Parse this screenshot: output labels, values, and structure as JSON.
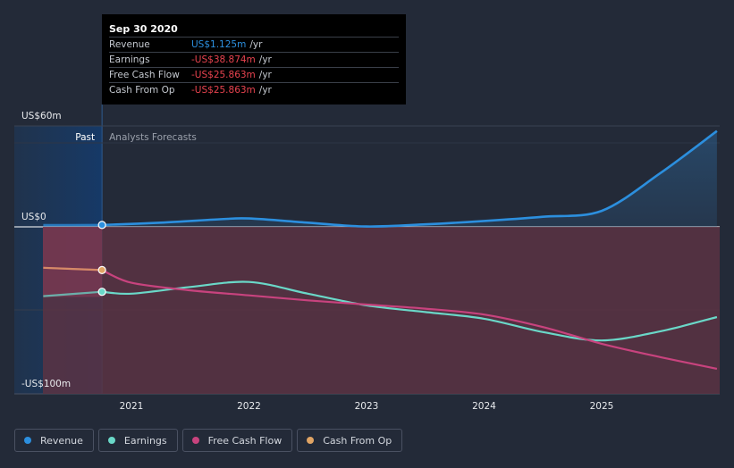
{
  "tooltip": {
    "date": "Sep 30 2020",
    "rows": [
      {
        "label": "Revenue",
        "value": "US$1.125m",
        "unit": "/yr",
        "color": "#2c8fde"
      },
      {
        "label": "Earnings",
        "value": "-US$38.874m",
        "unit": "/yr",
        "color": "#e8434f"
      },
      {
        "label": "Free Cash Flow",
        "value": "-US$25.863m",
        "unit": "/yr",
        "color": "#e8434f"
      },
      {
        "label": "Cash From Op",
        "value": "-US$25.863m",
        "unit": "/yr",
        "color": "#e8434f"
      }
    ]
  },
  "sections": {
    "past": "Past",
    "forecast": "Analysts Forecasts"
  },
  "legend": [
    {
      "label": "Revenue",
      "color": "#2c8fde"
    },
    {
      "label": "Earnings",
      "color": "#6ad8c8"
    },
    {
      "label": "Free Cash Flow",
      "color": "#c8437e"
    },
    {
      "label": "Cash From Op",
      "color": "#e0a464"
    }
  ],
  "chart_data": {
    "type": "line",
    "title": "",
    "xlabel": "",
    "ylabel": "",
    "y_tick_labels": [
      {
        "label": "US$60m",
        "value": 60
      },
      {
        "label": "US$0",
        "value": 0
      },
      {
        "label": "-US$100m",
        "value": -100
      }
    ],
    "ylim": [
      -100,
      60
    ],
    "xlim": [
      2020.25,
      2025.98
    ],
    "x_ticks": [
      {
        "label": "2021",
        "value": 2021
      },
      {
        "label": "2022",
        "value": 2022
      },
      {
        "label": "2023",
        "value": 2023
      },
      {
        "label": "2024",
        "value": 2024
      },
      {
        "label": "2025",
        "value": 2025
      }
    ],
    "past_end": 2020.75,
    "series": [
      {
        "name": "Revenue",
        "color": "#2c8fde",
        "points": [
          [
            2020.25,
            1.0
          ],
          [
            2020.75,
            1.125
          ],
          [
            2021.25,
            2.5
          ],
          [
            2021.75,
            4.5
          ],
          [
            2022.0,
            5.0
          ],
          [
            2022.5,
            2.5
          ],
          [
            2023.0,
            0.2
          ],
          [
            2023.5,
            1.5
          ],
          [
            2024.0,
            3.5
          ],
          [
            2024.5,
            6.0
          ],
          [
            2025.0,
            9.5
          ],
          [
            2025.5,
            32.0
          ],
          [
            2025.98,
            57.0
          ]
        ]
      },
      {
        "name": "Earnings",
        "color": "#6ad8c8",
        "points": [
          [
            2020.25,
            -41.5
          ],
          [
            2020.75,
            -38.874
          ],
          [
            2021.0,
            -40.0
          ],
          [
            2021.5,
            -36.0
          ],
          [
            2022.0,
            -33.0
          ],
          [
            2022.5,
            -40.0
          ],
          [
            2023.0,
            -47.0
          ],
          [
            2023.5,
            -51.0
          ],
          [
            2024.0,
            -55.0
          ],
          [
            2024.5,
            -63.0
          ],
          [
            2025.0,
            -68.0
          ],
          [
            2025.5,
            -62.5
          ],
          [
            2025.98,
            -54.0
          ]
        ]
      },
      {
        "name": "Free Cash Flow",
        "color": "#c8437e",
        "points": [
          [
            2020.25,
            -24.5
          ],
          [
            2020.75,
            -25.863
          ],
          [
            2021.0,
            -33.5
          ],
          [
            2021.5,
            -38.0
          ],
          [
            2022.0,
            -41.0
          ],
          [
            2022.5,
            -44.0
          ],
          [
            2023.0,
            -46.5
          ],
          [
            2023.5,
            -49.0
          ],
          [
            2024.0,
            -52.5
          ],
          [
            2024.5,
            -60.0
          ],
          [
            2025.0,
            -70.0
          ],
          [
            2025.5,
            -78.0
          ],
          [
            2025.98,
            -85.0
          ]
        ]
      },
      {
        "name": "Cash From Op",
        "color": "#e0a464",
        "points": [
          [
            2020.25,
            -24.5
          ],
          [
            2020.75,
            -25.863
          ]
        ]
      }
    ]
  }
}
